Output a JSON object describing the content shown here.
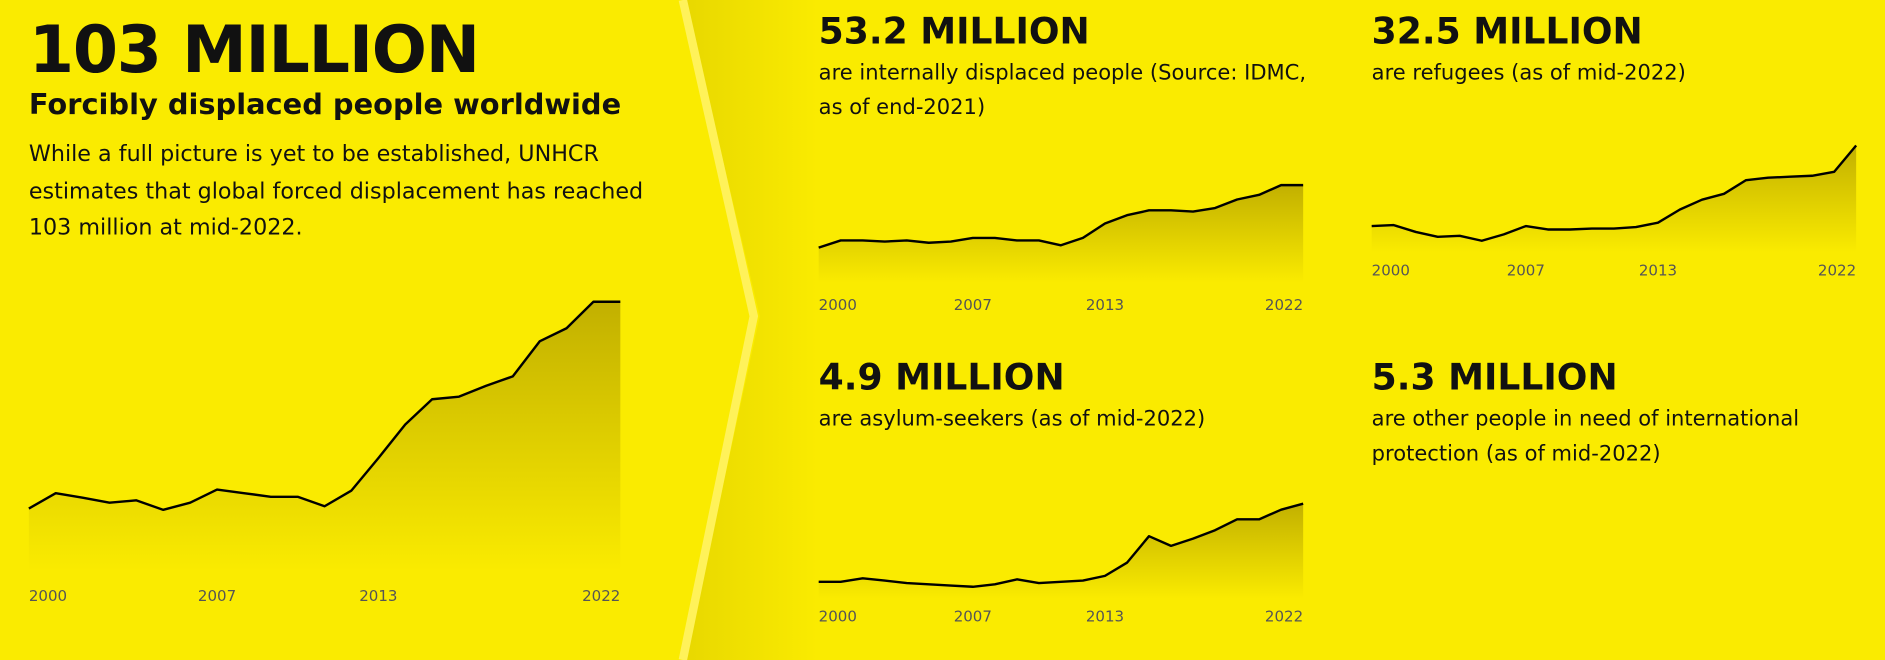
{
  "chart_data": [
    {
      "type": "area",
      "title": "103 MILLION",
      "subtitle": "Forcibly displaced people worldwide",
      "description": "While a full picture is yet to be established, UNHCR estimates that global forced displacement has reached 103 million at mid-2022.",
      "x": [
        2000,
        2001,
        2002,
        2003,
        2004,
        2005,
        2006,
        2007,
        2008,
        2009,
        2010,
        2011,
        2012,
        2013,
        2014,
        2015,
        2016,
        2017,
        2018,
        2019,
        2020,
        2021,
        2022
      ],
      "values": [
        39.8,
        44.5,
        43.1,
        41.6,
        42.3,
        39.4,
        41.6,
        45.6,
        44.5,
        43.4,
        43.4,
        40.5,
        45.3,
        55.2,
        65.5,
        73.2,
        74.0,
        77.3,
        80.2,
        90.9,
        94.9,
        103,
        103
      ],
      "xlim": [
        2000,
        2022
      ],
      "ylim": [
        20.7,
        103
      ],
      "xticks": [
        2000,
        2007,
        2013,
        2022
      ],
      "color": "#000000"
    },
    {
      "type": "area",
      "title": "53.2 MILLION",
      "subtitle": "are internally displaced people (Source: IDMC, as of end-2021)",
      "x": [
        2000,
        2001,
        2002,
        2003,
        2004,
        2005,
        2006,
        2007,
        2008,
        2009,
        2010,
        2011,
        2012,
        2013,
        2014,
        2015,
        2016,
        2017,
        2018,
        2019,
        2020,
        2021,
        2022
      ],
      "values": [
        21.0,
        24.7,
        24.7,
        24.1,
        24.7,
        23.5,
        24.1,
        26.0,
        26.0,
        24.7,
        24.7,
        22.2,
        26.0,
        33.4,
        37.7,
        40.2,
        40.2,
        39.6,
        41.4,
        45.8,
        48.2,
        53.2,
        53.2
      ],
      "xlim": [
        2000,
        2022
      ],
      "ylim": [
        3,
        53.2
      ],
      "xticks": [
        2000,
        2007,
        2013,
        2022
      ],
      "color": "#000000"
    },
    {
      "type": "area",
      "title": "32.5 MILLION",
      "subtitle": "are refugees (as of mid-2022)",
      "x": [
        2000,
        2001,
        2002,
        2003,
        2004,
        2005,
        2006,
        2007,
        2008,
        2009,
        2010,
        2011,
        2012,
        2013,
        2014,
        2015,
        2016,
        2017,
        2018,
        2019,
        2020,
        2021,
        2022
      ],
      "values": [
        16.0,
        16.2,
        14.8,
        13.8,
        14.0,
        13.0,
        14.3,
        16.0,
        15.3,
        15.3,
        15.5,
        15.5,
        15.8,
        16.7,
        19.4,
        21.4,
        22.6,
        25.4,
        25.9,
        26.1,
        26.3,
        27.1,
        32.5
      ],
      "xlim": [
        2000,
        2022
      ],
      "ylim": [
        10.6,
        32.5
      ],
      "xticks": [
        2000,
        2007,
        2013,
        2022
      ],
      "color": "#000000"
    },
    {
      "type": "area",
      "title": "4.9 MILLION",
      "subtitle": "are asylum-seekers (as of mid-2022)",
      "x": [
        2000,
        2001,
        2002,
        2003,
        2004,
        2005,
        2006,
        2007,
        2008,
        2009,
        2010,
        2011,
        2012,
        2013,
        2014,
        2015,
        2016,
        2017,
        2018,
        2019,
        2020,
        2021,
        2022
      ],
      "values": [
        1.1,
        1.1,
        1.27,
        1.16,
        1.04,
        0.98,
        0.92,
        0.86,
        0.98,
        1.22,
        1.04,
        1.1,
        1.16,
        1.39,
        2.03,
        3.32,
        2.85,
        3.2,
        3.61,
        4.14,
        4.14,
        4.61,
        4.9
      ],
      "xlim": [
        2000,
        2022
      ],
      "ylim": [
        0.28,
        4.9
      ],
      "xticks": [
        2000,
        2007,
        2013,
        2022
      ],
      "color": "#000000"
    }
  ],
  "other": {
    "title": "5.3 MILLION",
    "subtitle": "are other people in need of international protection (as of mid-2022)"
  }
}
